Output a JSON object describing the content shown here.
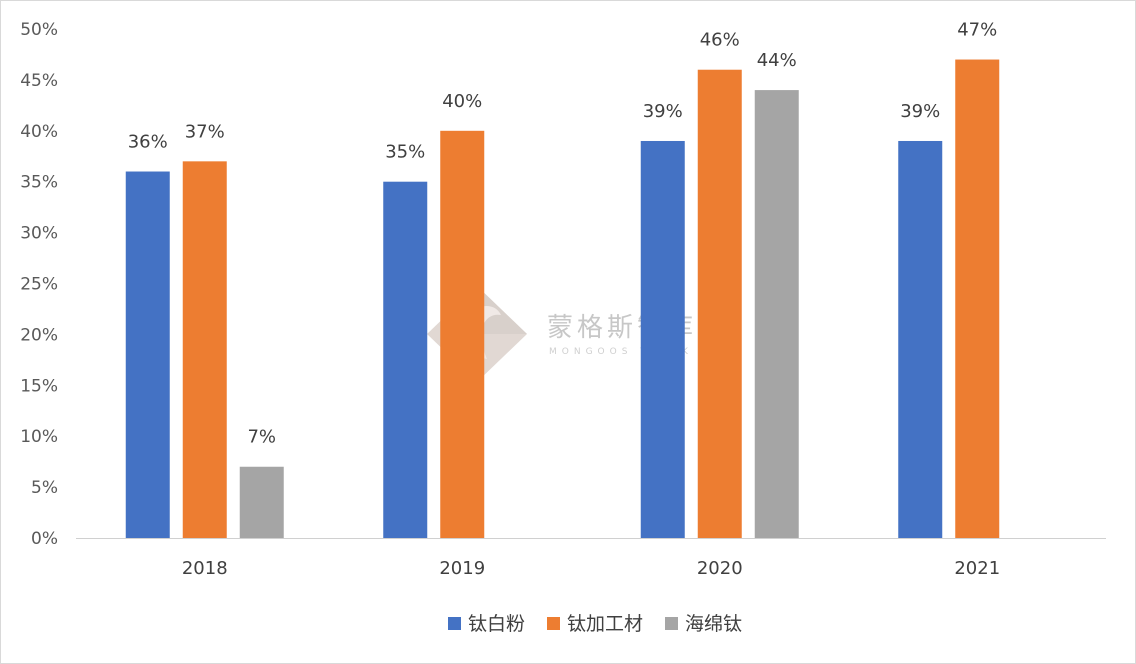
{
  "chart_data": {
    "type": "bar",
    "categories": [
      "2018",
      "2019",
      "2020",
      "2021"
    ],
    "series": [
      {
        "name": "钛白粉",
        "color": "#4472c4",
        "values": [
          36,
          35,
          39,
          39
        ],
        "labels": [
          "36%",
          "35%",
          "39%",
          "39%"
        ]
      },
      {
        "name": "钛加工材",
        "color": "#ed7d31",
        "values": [
          37,
          40,
          46,
          47
        ],
        "labels": [
          "37%",
          "40%",
          "46%",
          "47%"
        ]
      },
      {
        "name": "海绵钛",
        "color": "#a5a5a5",
        "values": [
          7,
          null,
          44,
          null
        ],
        "labels": [
          "7%",
          "",
          "44%",
          ""
        ]
      }
    ],
    "ylim": [
      0,
      50
    ],
    "yticks": [
      0,
      5,
      10,
      15,
      20,
      25,
      30,
      35,
      40,
      45,
      50
    ],
    "ytick_labels": [
      "0%",
      "5%",
      "10%",
      "15%",
      "20%",
      "25%",
      "30%",
      "35%",
      "40%",
      "45%",
      "50%"
    ],
    "legend_position": "bottom",
    "grid": false
  },
  "watermark": {
    "text": "蒙格斯智库",
    "subtext": "MONGOOS THINK",
    "logo_icon": "mongoose-diamond-logo-icon"
  }
}
